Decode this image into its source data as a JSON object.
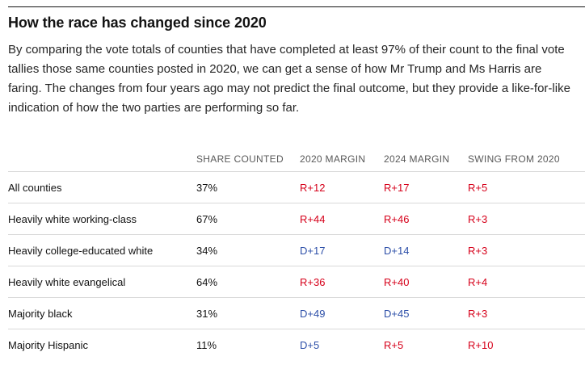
{
  "title": "How the race has changed since 2020",
  "description": "By comparing the vote totals of counties that have completed at least 97% of their count to the final vote tallies those same counties posted in 2020, we can get a sense of how Mr Trump and Ms Harris are faring. The changes from four years ago may not predict the final outcome, but they provide a like-for-like indication of how the two parties are performing so far.",
  "table": {
    "headers": [
      "",
      "SHARE COUNTED",
      "2020 MARGIN",
      "2024 MARGIN",
      "SWING FROM 2020"
    ],
    "rows": [
      [
        "All counties",
        "37%",
        "R+12",
        "R+17",
        "R+5"
      ],
      [
        "Heavily white working-class",
        "67%",
        "R+44",
        "R+46",
        "R+3"
      ],
      [
        "Heavily college-educated white",
        "34%",
        "D+17",
        "D+14",
        "R+3"
      ],
      [
        "Heavily white evangelical",
        "64%",
        "R+36",
        "R+40",
        "R+4"
      ],
      [
        "Majority black",
        "31%",
        "D+49",
        "D+45",
        "R+3"
      ],
      [
        "Majority Hispanic",
        "11%",
        "D+5",
        "R+5",
        "R+10"
      ]
    ]
  },
  "colors": {
    "republican": "#d6001a",
    "democrat": "#2d4fa8"
  }
}
